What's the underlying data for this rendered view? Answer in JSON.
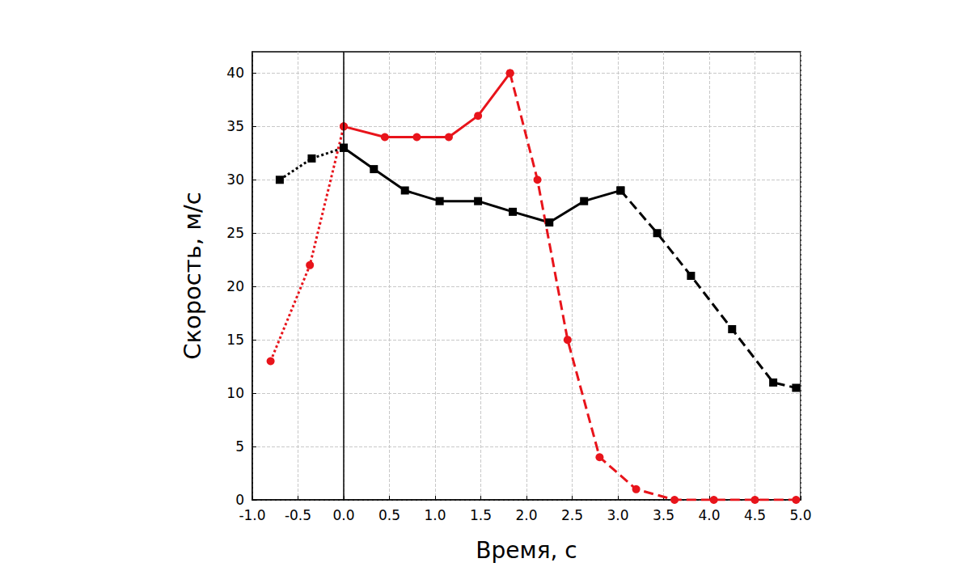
{
  "chart_data": {
    "type": "line",
    "x_label": "Время, с",
    "y_label": "Скорость, м/с",
    "xlim": [
      -1,
      5
    ],
    "xticks": [
      {
        "value": -1,
        "label": "-1.0"
      },
      {
        "value": -0.5,
        "label": "-0.5"
      },
      {
        "value": 0,
        "label": "0.0"
      },
      {
        "value": 0.5,
        "label": "0.5"
      },
      {
        "value": 1,
        "label": "1.0"
      },
      {
        "value": 1.5,
        "label": "1.5"
      },
      {
        "value": 2,
        "label": "2.0"
      },
      {
        "value": 2.5,
        "label": "2.5"
      },
      {
        "value": 3,
        "label": "3.0"
      },
      {
        "value": 3.5,
        "label": "3.5"
      },
      {
        "value": 4,
        "label": "4.0"
      },
      {
        "value": 4.5,
        "label": "4.5"
      },
      {
        "value": 5,
        "label": "5.0"
      }
    ],
    "ylim": [
      0,
      42
    ],
    "yticks": [
      0,
      5,
      10,
      15,
      20,
      25,
      30,
      35,
      40
    ],
    "grid": true,
    "reference_line_x": 0,
    "series": [
      {
        "color": "#000000",
        "marker": "square",
        "line_style": "dotted",
        "x": [
          -0.7,
          -0.35,
          0
        ],
        "values": [
          30,
          32,
          33
        ]
      },
      {
        "color": "#000000",
        "marker": "square",
        "line_style": "solid",
        "x": [
          0,
          0.33,
          0.67,
          1.05,
          1.47,
          1.85,
          2.25,
          2.63,
          3.03
        ],
        "values": [
          33,
          31,
          29,
          28,
          28,
          27,
          26,
          28,
          29
        ]
      },
      {
        "color": "#000000",
        "marker": "square",
        "line_style": "dashed",
        "x": [
          3.03,
          3.43,
          3.8,
          4.25,
          4.7,
          4.95
        ],
        "values": [
          29,
          25,
          21,
          16,
          11,
          10.5
        ]
      },
      {
        "color": "#e8141b",
        "marker": "circle",
        "line_style": "dotted",
        "x": [
          -0.8,
          -0.37,
          0
        ],
        "values": [
          13,
          22,
          35
        ]
      },
      {
        "color": "#e8141b",
        "marker": "circle",
        "line_style": "solid",
        "x": [
          0,
          0.45,
          0.8,
          1.15,
          1.47,
          1.82
        ],
        "values": [
          35,
          34,
          34,
          34,
          36,
          40
        ]
      },
      {
        "color": "#e8141b",
        "marker": "circle",
        "line_style": "dashed",
        "x": [
          1.82,
          2.12,
          2.45,
          2.8,
          3.2,
          3.62,
          4.05,
          4.5,
          4.95
        ],
        "values": [
          40,
          30,
          15,
          4,
          1,
          0,
          0,
          0,
          0
        ]
      }
    ]
  }
}
